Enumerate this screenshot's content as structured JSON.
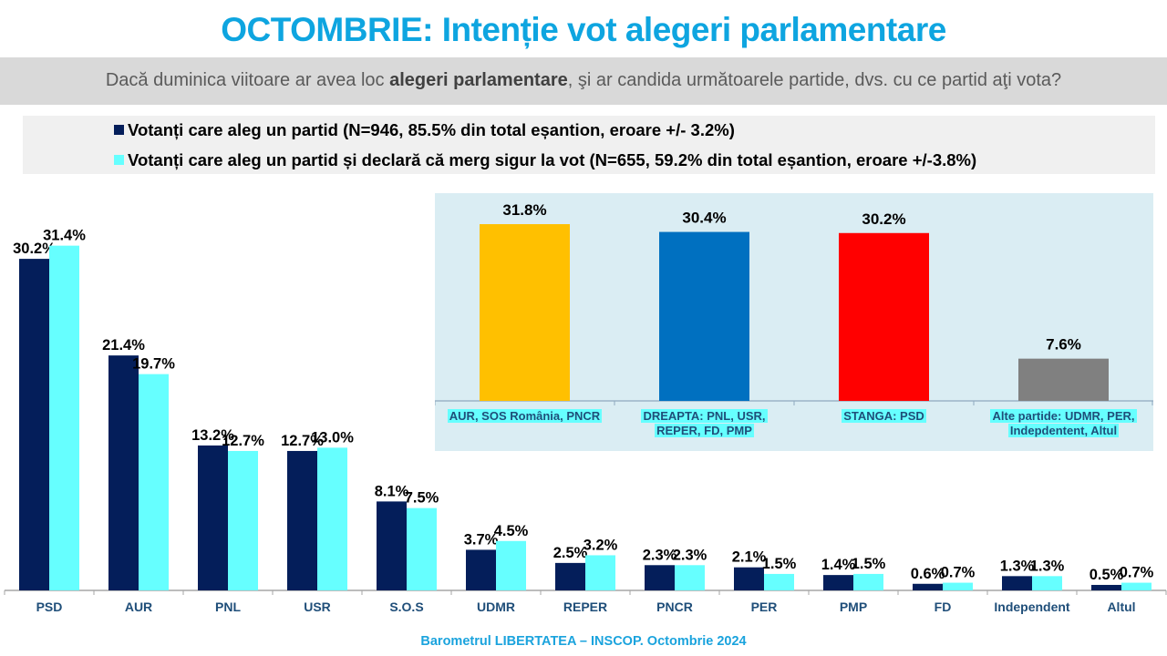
{
  "title": "OCTOMBRIE: Intenție vot alegeri parlamentare",
  "question": {
    "before": "Dacă duminica viitoare ar avea loc ",
    "bold": "alegeri parlamentare",
    "after": ", şi ar candida următoarele partide, dvs. cu ce partid aţi vota?"
  },
  "footer": "Barometrul LIBERTATEA – INSCOP. Octombrie 2024",
  "colors": {
    "title": "#0ea5e0",
    "series_dark": "#041e5a",
    "series_light": "#66ffff",
    "axis_label": "#1f4e79"
  },
  "chart_data": [
    {
      "type": "bar",
      "title": "",
      "xlabel": "",
      "ylabel": "",
      "ylim": [
        0,
        35
      ],
      "grid": false,
      "legend": "top",
      "categories": [
        "PSD",
        "AUR",
        "PNL",
        "USR",
        "S.O.S",
        "UDMR",
        "REPER",
        "PNCR",
        "PER",
        "PMP",
        "FD",
        "Independent",
        "Altul"
      ],
      "series": [
        {
          "name": "Votanți care aleg un partid (N=946, 85.5% din total eșantion, eroare +/- 3.2%)",
          "color": "#041e5a",
          "values": [
            30.2,
            21.4,
            13.2,
            12.7,
            8.1,
            3.7,
            2.5,
            2.3,
            2.1,
            1.4,
            0.6,
            1.3,
            0.5
          ],
          "labels": [
            "30.2%",
            "21.4%",
            "13.2%",
            "12.7%",
            "8.1%",
            "3.7%",
            "2.5%",
            "2.3%",
            "2.1%",
            "1.4%",
            "0.6%",
            "1.3%",
            "0.5%"
          ]
        },
        {
          "name": "Votanți care aleg un partid și declară că merg sigur la vot (N=655, 59.2% din total eșantion, eroare +/-3.8%)",
          "color": "#66ffff",
          "values": [
            31.4,
            19.7,
            12.7,
            13.0,
            7.5,
            4.5,
            3.2,
            2.3,
            1.5,
            1.5,
            0.7,
            1.3,
            0.7
          ],
          "labels": [
            "31.4%",
            "19.7%",
            "12.7%",
            "13.0%",
            "7.5%",
            "4.5%",
            "3.2%",
            "2.3%",
            "1.5%",
            "1.5%",
            "0.7%",
            "1.3%",
            "0.7%"
          ]
        }
      ]
    },
    {
      "type": "bar",
      "title": "",
      "xlabel": "",
      "ylabel": "",
      "ylim": [
        0,
        35
      ],
      "grid": false,
      "categories": [
        [
          "AUR, SOS România, PNCR"
        ],
        [
          "DREAPTA: PNL, USR,",
          "REPER, FD, PMP"
        ],
        [
          "STANGA: PSD"
        ],
        [
          "Alte partide: UDMR, PER,",
          "Indepdentent, Altul"
        ]
      ],
      "values": [
        31.8,
        30.4,
        30.2,
        7.6
      ],
      "labels": [
        "31.8%",
        "30.4%",
        "30.2%",
        "7.6%"
      ],
      "colors": [
        "#ffc000",
        "#0070c0",
        "#ff0000",
        "#808080"
      ]
    }
  ]
}
